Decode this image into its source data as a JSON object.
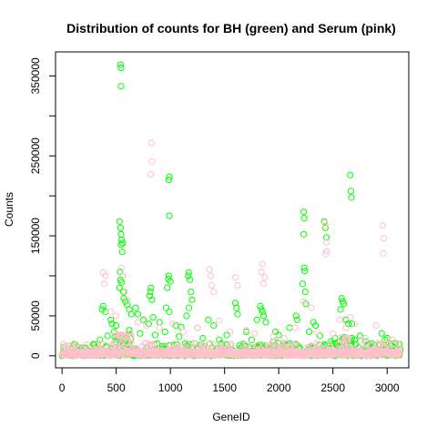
{
  "chart_data": {
    "type": "scatter",
    "title": "Distribution of counts for BH (green) and Serum (pink)",
    "xlabel": "GeneID",
    "ylabel": "Counts",
    "xlim": [
      -60,
      3200
    ],
    "ylim": [
      -15000,
      380000
    ],
    "x_ticks": [
      0,
      500,
      1000,
      1500,
      2000,
      2500,
      3000
    ],
    "y_ticks": [
      0,
      50000,
      100000,
      150000,
      200000,
      250000,
      300000,
      350000
    ],
    "y_tick_labels_shown": [
      0,
      50000,
      150000,
      250000,
      350000
    ],
    "marker": "open-circle",
    "series": [
      {
        "name": "BH",
        "color": "#00ff00",
        "points": [
          [
            540,
            364000
          ],
          [
            545,
            360000
          ],
          [
            545,
            337000
          ],
          [
            530,
            168000
          ],
          [
            540,
            160000
          ],
          [
            545,
            152000
          ],
          [
            550,
            145000
          ],
          [
            560,
            141000
          ],
          [
            545,
            139000
          ],
          [
            555,
            130000
          ],
          [
            535,
            105000
          ],
          [
            560,
            100000
          ],
          [
            540,
            95000
          ],
          [
            550,
            92000
          ],
          [
            530,
            85000
          ],
          [
            565,
            80000
          ],
          [
            570,
            72000
          ],
          [
            585,
            68000
          ],
          [
            600,
            64000
          ],
          [
            620,
            58000
          ],
          [
            640,
            52000
          ],
          [
            990,
            224000
          ],
          [
            985,
            220000
          ],
          [
            990,
            175000
          ],
          [
            985,
            100000
          ],
          [
            980,
            96000
          ],
          [
            1000,
            93000
          ],
          [
            970,
            85000
          ],
          [
            960,
            60000
          ],
          [
            990,
            55000
          ],
          [
            820,
            85000
          ],
          [
            815,
            80000
          ],
          [
            810,
            75000
          ],
          [
            830,
            70000
          ],
          [
            840,
            48000
          ],
          [
            1170,
            104000
          ],
          [
            1165,
            100000
          ],
          [
            1180,
            95000
          ],
          [
            1190,
            80000
          ],
          [
            1200,
            70000
          ],
          [
            1170,
            60000
          ],
          [
            1150,
            50000
          ],
          [
            380,
            62000
          ],
          [
            370,
            58000
          ],
          [
            400,
            55000
          ],
          [
            450,
            45000
          ],
          [
            460,
            40000
          ],
          [
            500,
            38000
          ],
          [
            680,
            60000
          ],
          [
            700,
            52000
          ],
          [
            750,
            45000
          ],
          [
            800,
            40000
          ],
          [
            900,
            42000
          ],
          [
            1050,
            38000
          ],
          [
            1100,
            36000
          ],
          [
            1250,
            35000
          ],
          [
            1350,
            45000
          ],
          [
            1400,
            38000
          ],
          [
            1600,
            66000
          ],
          [
            1610,
            60000
          ],
          [
            1620,
            52000
          ],
          [
            1830,
            62000
          ],
          [
            1840,
            58000
          ],
          [
            1850,
            55000
          ],
          [
            1860,
            50000
          ],
          [
            1800,
            45000
          ],
          [
            1880,
            42000
          ],
          [
            1970,
            30000
          ],
          [
            2000,
            26000
          ],
          [
            2100,
            35000
          ],
          [
            2160,
            50000
          ],
          [
            2170,
            45000
          ],
          [
            2230,
            180000
          ],
          [
            2235,
            172000
          ],
          [
            2230,
            152000
          ],
          [
            2235,
            110000
          ],
          [
            2240,
            106000
          ],
          [
            2220,
            90000
          ],
          [
            2245,
            80000
          ],
          [
            2250,
            65000
          ],
          [
            2320,
            42000
          ],
          [
            2340,
            38000
          ],
          [
            2420,
            168000
          ],
          [
            2430,
            160000
          ],
          [
            2440,
            148000
          ],
          [
            2580,
            72000
          ],
          [
            2590,
            68000
          ],
          [
            2600,
            65000
          ],
          [
            2570,
            58000
          ],
          [
            2620,
            45000
          ],
          [
            2640,
            40000
          ],
          [
            2660,
            226000
          ],
          [
            2665,
            206000
          ],
          [
            2670,
            198000
          ],
          [
            2675,
            40000
          ],
          [
            2750,
            25000
          ],
          [
            2800,
            18000
          ],
          [
            2950,
            28000
          ],
          [
            2980,
            20000
          ],
          [
            3000,
            22000
          ],
          [
            3050,
            12000
          ],
          [
            100,
            12000
          ],
          [
            150,
            8000
          ],
          [
            200,
            10000
          ],
          [
            250,
            6000
          ],
          [
            300,
            14000
          ],
          [
            350,
            20000
          ],
          [
            420,
            25000
          ],
          [
            480,
            30000
          ],
          [
            620,
            32000
          ],
          [
            720,
            28000
          ],
          [
            860,
            26000
          ],
          [
            950,
            30000
          ],
          [
            1080,
            24000
          ],
          [
            1300,
            22000
          ],
          [
            1450,
            20000
          ],
          [
            1520,
            26000
          ],
          [
            1700,
            30000
          ],
          [
            1750,
            20000
          ],
          [
            1950,
            18000
          ],
          [
            2050,
            15000
          ],
          [
            2280,
            30000
          ],
          [
            2380,
            25000
          ],
          [
            2480,
            18000
          ],
          [
            2520,
            22000
          ],
          [
            2700,
            20000
          ],
          [
            2880,
            12000
          ]
        ]
      },
      {
        "name": "Serum",
        "color": "#ffc0cb",
        "points": [
          [
            825,
            266000
          ],
          [
            830,
            243000
          ],
          [
            820,
            227000
          ],
          [
            2425,
            166000
          ],
          [
            2430,
            163000
          ],
          [
            2440,
            142000
          ],
          [
            2440,
            131000
          ],
          [
            2435,
            127000
          ],
          [
            2960,
            163000
          ],
          [
            2970,
            147000
          ],
          [
            2965,
            128000
          ],
          [
            380,
            104000
          ],
          [
            400,
            100000
          ],
          [
            390,
            90000
          ],
          [
            550,
            110000
          ],
          [
            560,
            100000
          ],
          [
            580,
            80000
          ],
          [
            600,
            70000
          ],
          [
            1360,
            108000
          ],
          [
            1370,
            100000
          ],
          [
            1380,
            88000
          ],
          [
            1400,
            80000
          ],
          [
            1850,
            115000
          ],
          [
            1840,
            105000
          ],
          [
            1870,
            98000
          ],
          [
            1860,
            90000
          ],
          [
            1600,
            98000
          ],
          [
            1620,
            88000
          ],
          [
            2230,
            68000
          ],
          [
            2300,
            60000
          ],
          [
            2660,
            48000
          ],
          [
            2700,
            40000
          ],
          [
            2900,
            38000
          ],
          [
            3050,
            20000
          ],
          [
            450,
            55000
          ],
          [
            500,
            50000
          ],
          [
            700,
            42000
          ],
          [
            780,
            38000
          ],
          [
            900,
            35000
          ],
          [
            1020,
            40000
          ],
          [
            1120,
            30000
          ],
          [
            1250,
            35000
          ],
          [
            1450,
            44000
          ],
          [
            1550,
            30000
          ],
          [
            1700,
            32000
          ],
          [
            1780,
            28000
          ],
          [
            1950,
            25000
          ],
          [
            2050,
            22000
          ],
          [
            2150,
            35000
          ],
          [
            2350,
            30000
          ],
          [
            2500,
            28000
          ],
          [
            2560,
            45000
          ],
          [
            2620,
            35000
          ],
          [
            2800,
            22000
          ],
          [
            3000,
            15000
          ],
          [
            3100,
            8000
          ]
        ]
      }
    ]
  }
}
